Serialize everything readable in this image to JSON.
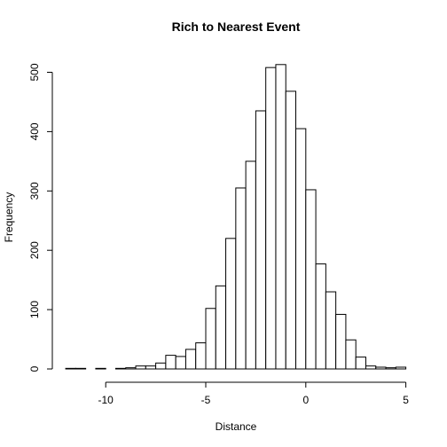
{
  "chart_data": {
    "type": "bar",
    "title": "Rich to Nearest Event",
    "xlabel": "Distance",
    "ylabel": "Frequency",
    "bin_width": 0.5,
    "xlim": [
      -12,
      5
    ],
    "ylim": [
      0,
      515
    ],
    "x_ticks": [
      -10,
      -5,
      0,
      5
    ],
    "y_ticks": [
      0,
      100,
      200,
      300,
      400,
      500
    ],
    "bin_starts": [
      -12,
      -11.5,
      -11,
      -10.5,
      -10,
      -9.5,
      -9,
      -8.5,
      -8,
      -7.5,
      -7,
      -6.5,
      -6,
      -5.5,
      -5,
      -4.5,
      -4,
      -3.5,
      -3,
      -2.5,
      -2,
      -1.5,
      -1,
      -0.5,
      0,
      0.5,
      1,
      1.5,
      2,
      2.5,
      3,
      3.5,
      4,
      4.5
    ],
    "values": [
      1,
      1,
      0,
      1,
      0,
      1,
      2,
      5,
      5,
      10,
      23,
      21,
      33,
      44,
      102,
      140,
      220,
      305,
      350,
      435,
      508,
      513,
      468,
      405,
      302,
      177,
      130,
      92,
      49,
      20,
      5,
      3,
      2,
      3
    ],
    "bar_fill": "#ffffff",
    "bar_stroke": "#000000"
  }
}
